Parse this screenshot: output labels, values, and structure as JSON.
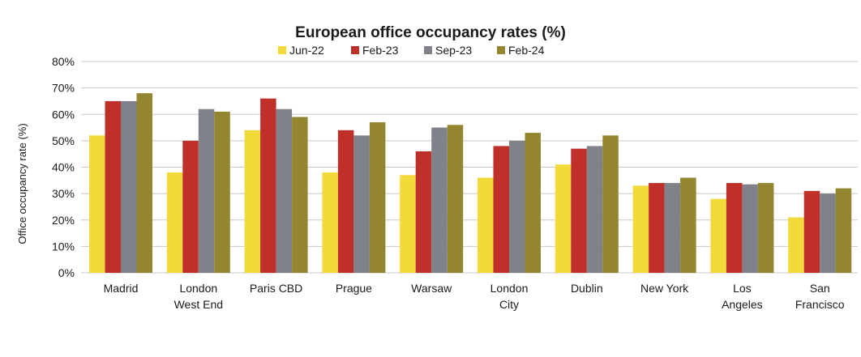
{
  "chart_data": {
    "type": "bar",
    "title": "European office occupancy rates (%)",
    "ylabel": "Office occupancy rate (%)",
    "xlabel": "",
    "ylim": [
      0,
      80
    ],
    "yticks": [
      "0%",
      "10%",
      "20%",
      "30%",
      "40%",
      "50%",
      "60%",
      "70%",
      "80%"
    ],
    "grid": true,
    "legend_position": "top",
    "categories": [
      [
        "Madrid"
      ],
      [
        "London",
        "West End"
      ],
      [
        "Paris CBD"
      ],
      [
        "Prague"
      ],
      [
        "Warsaw"
      ],
      [
        "London",
        "City"
      ],
      [
        "Dublin"
      ],
      [
        "New York"
      ],
      [
        "Los",
        "Angeles"
      ],
      [
        "San",
        "Francisco"
      ]
    ],
    "series": [
      {
        "name": "Jun-22",
        "color": "#f2da3a",
        "values": [
          52,
          38,
          54,
          38,
          37,
          36,
          41,
          33,
          28,
          21
        ]
      },
      {
        "name": "Feb-23",
        "color": "#c0302b",
        "values": [
          65,
          50,
          66,
          54,
          46,
          48,
          47,
          34,
          34,
          31
        ]
      },
      {
        "name": "Sep-23",
        "color": "#7f8289",
        "values": [
          65,
          62,
          62,
          52,
          55,
          50,
          48,
          34,
          33.5,
          30
        ]
      },
      {
        "name": "Feb-24",
        "color": "#948630",
        "values": [
          68,
          61,
          59,
          57,
          56,
          53,
          52,
          36,
          34,
          32
        ]
      }
    ]
  }
}
